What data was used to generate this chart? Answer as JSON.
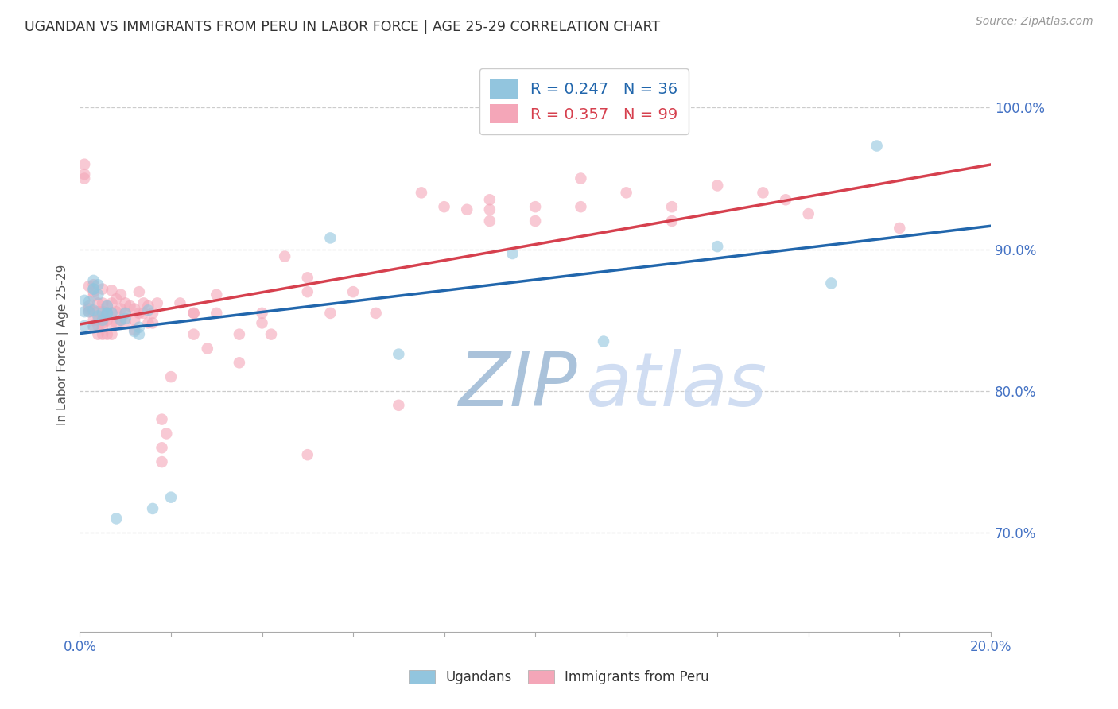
{
  "title": "UGANDAN VS IMMIGRANTS FROM PERU IN LABOR FORCE | AGE 25-29 CORRELATION CHART",
  "source": "Source: ZipAtlas.com",
  "ylabel": "In Labor Force | Age 25-29",
  "legend1_label": "Ugandans",
  "legend2_label": "Immigrants from Peru",
  "r1": 0.247,
  "n1": 36,
  "r2": 0.357,
  "n2": 99,
  "blue_color": "#92c5de",
  "pink_color": "#f4a6b8",
  "blue_line_color": "#2166ac",
  "pink_line_color": "#d6404e",
  "axis_tick_color": "#4472c4",
  "title_color": "#333333",
  "watermark_zip_color": "#9bb8d4",
  "watermark_atlas_color": "#c8d8f0",
  "watermark_text_zip": "ZIP",
  "watermark_text_atlas": "atlas",
  "xmin": 0.0,
  "xmax": 0.2,
  "ymin": 0.63,
  "ymax": 1.035,
  "ytick_locs": [
    0.7,
    0.8,
    0.9,
    1.0
  ],
  "ytick_labels": [
    "70.0%",
    "80.0%",
    "90.0%",
    "100.0%"
  ],
  "blue_x": [
    0.001,
    0.001,
    0.002,
    0.002,
    0.003,
    0.003,
    0.003,
    0.003,
    0.004,
    0.004,
    0.004,
    0.005,
    0.005,
    0.006,
    0.006,
    0.006,
    0.007,
    0.008,
    0.009,
    0.01,
    0.01,
    0.012,
    0.013,
    0.013,
    0.015,
    0.016,
    0.02,
    0.055,
    0.07,
    0.095,
    0.115,
    0.14,
    0.165,
    0.175,
    0.001,
    0.003
  ],
  "blue_y": [
    0.856,
    0.864,
    0.856,
    0.863,
    0.872,
    0.872,
    0.878,
    0.857,
    0.853,
    0.868,
    0.875,
    0.855,
    0.85,
    0.855,
    0.86,
    0.855,
    0.855,
    0.71,
    0.85,
    0.851,
    0.855,
    0.842,
    0.84,
    0.845,
    0.857,
    0.717,
    0.725,
    0.908,
    0.826,
    0.897,
    0.835,
    0.902,
    0.876,
    0.973,
    0.846,
    0.846
  ],
  "pink_x": [
    0.001,
    0.001,
    0.001,
    0.002,
    0.002,
    0.002,
    0.002,
    0.003,
    0.003,
    0.003,
    0.003,
    0.003,
    0.003,
    0.004,
    0.004,
    0.004,
    0.004,
    0.004,
    0.005,
    0.005,
    0.005,
    0.005,
    0.005,
    0.005,
    0.005,
    0.006,
    0.006,
    0.006,
    0.006,
    0.007,
    0.007,
    0.007,
    0.007,
    0.007,
    0.008,
    0.008,
    0.008,
    0.009,
    0.009,
    0.009,
    0.01,
    0.01,
    0.01,
    0.011,
    0.012,
    0.012,
    0.012,
    0.013,
    0.013,
    0.014,
    0.014,
    0.015,
    0.015,
    0.016,
    0.016,
    0.017,
    0.018,
    0.018,
    0.018,
    0.019,
    0.02,
    0.022,
    0.025,
    0.025,
    0.025,
    0.028,
    0.03,
    0.03,
    0.035,
    0.035,
    0.04,
    0.04,
    0.042,
    0.045,
    0.05,
    0.05,
    0.05,
    0.055,
    0.06,
    0.065,
    0.07,
    0.075,
    0.08,
    0.085,
    0.09,
    0.09,
    0.09,
    0.1,
    0.1,
    0.11,
    0.11,
    0.12,
    0.13,
    0.13,
    0.14,
    0.15,
    0.155,
    0.16,
    0.18
  ],
  "pink_y": [
    0.96,
    0.953,
    0.95,
    0.858,
    0.874,
    0.86,
    0.856,
    0.875,
    0.87,
    0.867,
    0.856,
    0.85,
    0.845,
    0.862,
    0.856,
    0.85,
    0.846,
    0.84,
    0.872,
    0.862,
    0.856,
    0.851,
    0.848,
    0.845,
    0.84,
    0.86,
    0.855,
    0.85,
    0.84,
    0.871,
    0.862,
    0.855,
    0.848,
    0.84,
    0.865,
    0.856,
    0.848,
    0.868,
    0.858,
    0.85,
    0.862,
    0.855,
    0.848,
    0.86,
    0.858,
    0.85,
    0.843,
    0.87,
    0.855,
    0.862,
    0.855,
    0.86,
    0.848,
    0.855,
    0.848,
    0.862,
    0.78,
    0.76,
    0.75,
    0.77,
    0.81,
    0.862,
    0.855,
    0.84,
    0.855,
    0.83,
    0.868,
    0.855,
    0.84,
    0.82,
    0.855,
    0.848,
    0.84,
    0.895,
    0.88,
    0.87,
    0.755,
    0.855,
    0.87,
    0.855,
    0.79,
    0.94,
    0.93,
    0.928,
    0.935,
    0.928,
    0.92,
    0.93,
    0.92,
    0.95,
    0.93,
    0.94,
    0.93,
    0.92,
    0.945,
    0.94,
    0.935,
    0.925,
    0.915
  ]
}
